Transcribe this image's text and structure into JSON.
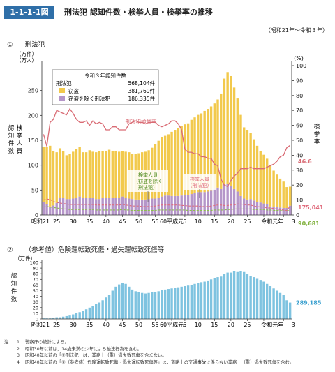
{
  "header": {
    "badge": "1-1-1-1図",
    "title": "刑法犯 認知件数・検挙人員・検挙率の推移",
    "period": "（昭和21年～令和３年）"
  },
  "sections": [
    {
      "num": "①",
      "title": "刑法犯"
    },
    {
      "num": "②",
      "title": "（参考値）危険運転致死傷・過失運転致死傷等"
    }
  ],
  "notes": {
    "head": "注",
    "items": [
      {
        "num": "1",
        "text": "警察庁の統計による。"
      },
      {
        "num": "2",
        "text": "昭和30年以前は，14歳未満の少年による触法行為を含む。"
      },
      {
        "num": "3",
        "text": "昭和40年以前の「①刑法犯」は，業務上（重）過失致死傷を含まない。"
      },
      {
        "num": "4",
        "text": "昭和40年以前の「②（参考値）危険運転致死傷・過失運転致死傷等」は，道路上の交通事故に係らない業務上（重）過失致死傷を含む。"
      }
    ]
  },
  "colors": {
    "theft": "#f2c94c",
    "nontheft": "#b596c9",
    "rate": "#d96b74",
    "arrests_all": "#e06c7d",
    "arrests_nontheft": "#8bbf4a",
    "chart2": "#7ec3e0",
    "header": "#2f6fa8",
    "axis": "#333333"
  },
  "chart_data": [
    {
      "type": "bar",
      "title": "刑法犯",
      "ylabel_left": "認知件数",
      "ylabel_left2": "検挙人員",
      "ylabel_right": "検挙率",
      "unit_left": "（万件）（万人）",
      "unit_right": "(%)",
      "ylim_left": [
        0,
        300
      ],
      "ylim_right": [
        0,
        100
      ],
      "yticks_left": [
        0,
        50,
        100,
        150,
        200,
        250
      ],
      "yticks_right": [
        0,
        10,
        20,
        30,
        40,
        50,
        60,
        70,
        80,
        90,
        100
      ],
      "x_first_label": "昭和21",
      "x_tick_labels": [
        "25",
        "30",
        "35",
        "40",
        "45",
        "50",
        "55",
        "60平成元",
        "5",
        "10",
        "15",
        "20",
        "25",
        "令和元年",
        "3"
      ],
      "x": [
        1946,
        1947,
        1948,
        1949,
        1950,
        1951,
        1952,
        1953,
        1954,
        1955,
        1956,
        1957,
        1958,
        1959,
        1960,
        1961,
        1962,
        1963,
        1964,
        1965,
        1966,
        1967,
        1968,
        1969,
        1970,
        1971,
        1972,
        1973,
        1974,
        1975,
        1976,
        1977,
        1978,
        1979,
        1980,
        1981,
        1982,
        1983,
        1984,
        1985,
        1986,
        1987,
        1988,
        1989,
        1990,
        1991,
        1992,
        1993,
        1994,
        1995,
        1996,
        1997,
        1998,
        1999,
        2000,
        2001,
        2002,
        2003,
        2004,
        2005,
        2006,
        2007,
        2008,
        2009,
        2010,
        2011,
        2012,
        2013,
        2014,
        2015,
        2016,
        2017,
        2018,
        2019,
        2020,
        2021
      ],
      "series": [
        {
          "name": "窃盗",
          "stack": "bar",
          "values": [
            110,
            115,
            122,
            110,
            102,
            100,
            93,
            88,
            90,
            94,
            98,
            100,
            92,
            92,
            95,
            93,
            94,
            96,
            94,
            94,
            96,
            95,
            95,
            92,
            91,
            92,
            93,
            91,
            92,
            93,
            95,
            96,
            98,
            102,
            109,
            114,
            120,
            120,
            123,
            129,
            133,
            136,
            140,
            142,
            144,
            149,
            152,
            155,
            158,
            163,
            166,
            168,
            172,
            177,
            192,
            212,
            224,
            221,
            204,
            187,
            163,
            143,
            140,
            133,
            123,
            113,
            104,
            98,
            91,
            82,
            73,
            65,
            58,
            53,
            42,
            38.2
          ]
        },
        {
          "name": "窃盗を除く刑法犯",
          "stack": "bar",
          "values": [
            26,
            22,
            17,
            19,
            24,
            34,
            35,
            32,
            32,
            33,
            34,
            37,
            34,
            34,
            35,
            34,
            32,
            32,
            34,
            35,
            35,
            34,
            34,
            35,
            37,
            35,
            33,
            32,
            31,
            31,
            31,
            31,
            32,
            33,
            33,
            35,
            37,
            39,
            39,
            38,
            38,
            38,
            39,
            40,
            40,
            42,
            44,
            46,
            46,
            46,
            47,
            50,
            52,
            55,
            52,
            62,
            63,
            58,
            52,
            47,
            38,
            33,
            31,
            32,
            29,
            26,
            25,
            23,
            22,
            17,
            16,
            16,
            15,
            14,
            14,
            18.6
          ]
        },
        {
          "name": "検挙率",
          "axis": "right",
          "values": [
            54,
            46,
            62,
            64,
            70,
            69,
            68,
            67,
            71,
            68,
            64,
            62,
            62,
            63,
            60,
            63,
            61,
            62,
            61,
            57,
            57,
            59,
            59,
            57,
            57,
            57,
            61,
            62,
            63,
            62,
            62,
            61,
            62,
            62,
            62,
            60,
            59,
            60,
            61,
            63,
            63,
            61,
            57,
            44,
            42,
            42,
            41,
            41,
            39,
            39,
            38,
            38,
            34,
            33,
            24,
            20,
            19,
            23,
            26,
            28,
            31,
            31,
            31,
            32,
            31,
            31,
            31,
            31,
            32,
            33,
            34,
            36,
            39,
            40,
            45,
            46.6
          ]
        },
        {
          "name": "検挙人員（刑法犯）",
          "axis": "left",
          "values": [
            30,
            32,
            31,
            27,
            25,
            24,
            23,
            22,
            21,
            21,
            21,
            21,
            21,
            21,
            21,
            21,
            20,
            20,
            20,
            20,
            20,
            20,
            20,
            20,
            21,
            20,
            19,
            18,
            18,
            18,
            17,
            17,
            17,
            17,
            18,
            19,
            20,
            20,
            20,
            20,
            20,
            20,
            19,
            19,
            18,
            18,
            18,
            18,
            17,
            17,
            17,
            18,
            19,
            20,
            20,
            19,
            19,
            20,
            20,
            22,
            22,
            21,
            20,
            20,
            18,
            17,
            16,
            16,
            14,
            14,
            13,
            12,
            11,
            10,
            9,
            17.5
          ]
        },
        {
          "name": "検挙人員（窃盗を除く刑法犯）",
          "axis": "left",
          "values": [
            16,
            17,
            16,
            15,
            14,
            13,
            12,
            12,
            11,
            11,
            11,
            11,
            11,
            11,
            11,
            11,
            10,
            10,
            10,
            10,
            10,
            10,
            10,
            10,
            11,
            10,
            10,
            9,
            9,
            9,
            9,
            9,
            9,
            9,
            9,
            10,
            10,
            10,
            10,
            10,
            10,
            10,
            10,
            10,
            9,
            9,
            9,
            9,
            9,
            9,
            9,
            9,
            10,
            10,
            10,
            10,
            11,
            11,
            12,
            12,
            12,
            12,
            12,
            12,
            11,
            11,
            11,
            11,
            10,
            10,
            9,
            9,
            9,
            8,
            8,
            9.1
          ]
        }
      ],
      "legend": {
        "title": "令和３年認知件数",
        "total_label": "刑法犯",
        "total_value": "568,104件",
        "theft_label": "窃盗",
        "theft_value": "381,769件",
        "nontheft_label": "窃盗を除く刑法犯",
        "nontheft_value": "186,335件"
      },
      "annotations": {
        "rate": "刑法犯検挙率",
        "arrests_nontheft_1": "検挙人員",
        "arrests_nontheft_2": "（窃盗を除く",
        "arrests_nontheft_3": "刑法犯）",
        "arrests_all_1": "検挙人員",
        "arrests_all_2": "（刑法犯）",
        "end_rate": "46.6",
        "end_arrests_all": "175,041",
        "end_arrests_nontheft": "90,681"
      }
    },
    {
      "type": "bar",
      "title": "（参考値）危険運転致死傷・過失運転致死傷等",
      "ylabel": "認知件数",
      "unit": "（万件）",
      "ylim": [
        0,
        100
      ],
      "yticks": [
        0,
        10,
        20,
        30,
        40,
        50,
        60,
        70,
        80,
        90,
        100
      ],
      "x_first_label": "昭和21",
      "x_tick_labels": [
        "25",
        "30",
        "35",
        "40",
        "45",
        "50",
        "55",
        "60平成元",
        "5",
        "10",
        "15",
        "20",
        "25",
        "令和元年",
        "3"
      ],
      "x": [
        1946,
        1947,
        1948,
        1949,
        1950,
        1951,
        1952,
        1953,
        1954,
        1955,
        1956,
        1957,
        1958,
        1959,
        1960,
        1961,
        1962,
        1963,
        1964,
        1965,
        1966,
        1967,
        1968,
        1969,
        1970,
        1971,
        1972,
        1973,
        1974,
        1975,
        1976,
        1977,
        1978,
        1979,
        1980,
        1981,
        1982,
        1983,
        1984,
        1985,
        1986,
        1987,
        1988,
        1989,
        1990,
        1991,
        1992,
        1993,
        1994,
        1995,
        1996,
        1997,
        1998,
        1999,
        2000,
        2001,
        2002,
        2003,
        2004,
        2005,
        2006,
        2007,
        2008,
        2009,
        2010,
        2011,
        2012,
        2013,
        2014,
        2015,
        2016,
        2017,
        2018,
        2019,
        2020,
        2021
      ],
      "values": [
        1,
        1,
        1,
        2,
        3,
        3,
        4,
        5,
        6,
        8,
        10,
        12,
        14,
        17,
        20,
        23,
        26,
        29,
        33,
        38,
        43,
        50,
        57,
        61,
        64,
        62,
        57,
        52,
        49,
        47,
        46,
        45,
        46,
        47,
        48,
        49,
        51,
        52,
        53,
        54,
        55,
        56,
        57,
        58,
        59,
        60,
        62,
        64,
        65,
        66,
        68,
        70,
        72,
        74,
        75,
        80,
        82,
        82,
        84,
        83,
        84,
        83,
        79,
        76,
        74,
        71,
        69,
        66,
        62,
        58,
        54,
        50,
        46,
        42,
        33,
        28.9
      ],
      "end_label": "289,185"
    }
  ]
}
